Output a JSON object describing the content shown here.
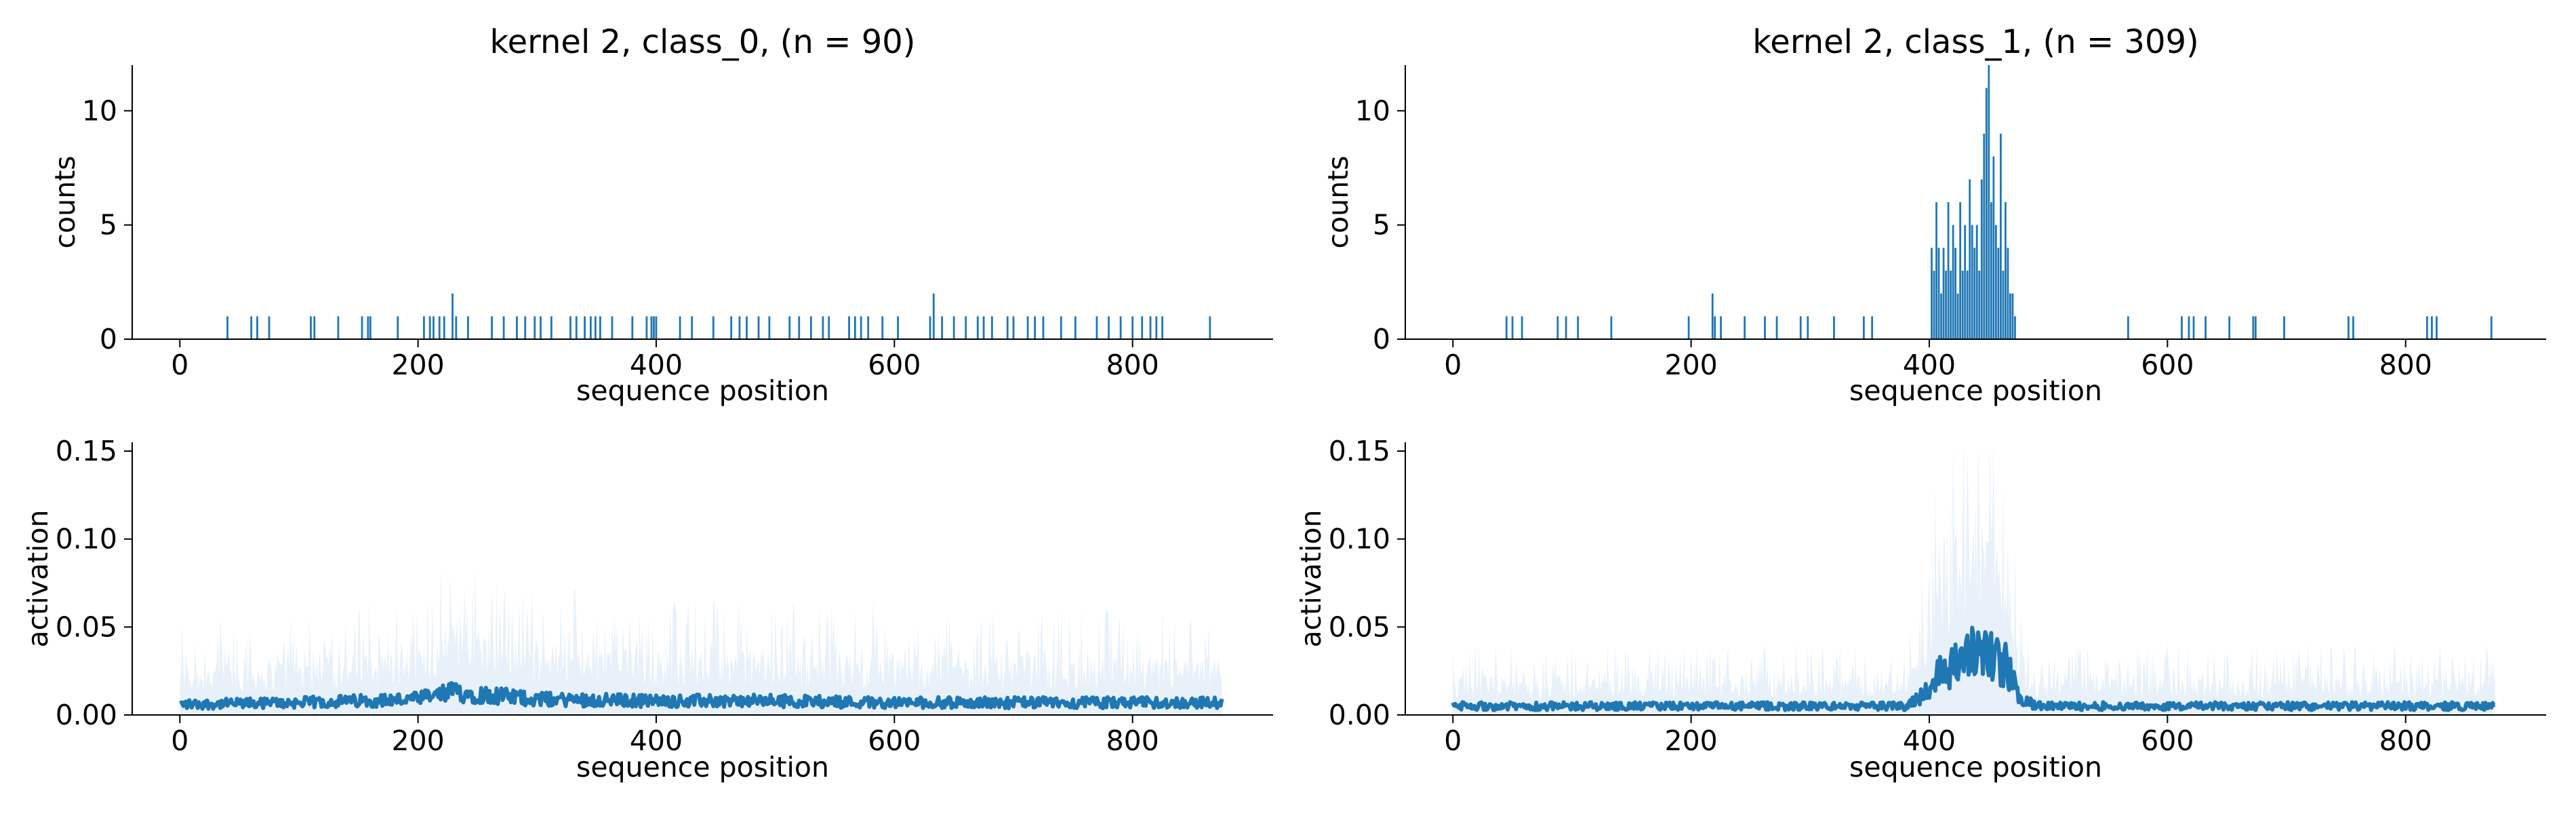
{
  "colors": {
    "series": "#1f77b4",
    "band": "#e8f1f9",
    "axis": "#000000"
  },
  "chart_data": [
    {
      "id": "top-left",
      "type": "bar",
      "title": "kernel 2, class_0, (n = 90)",
      "xlabel": "sequence position",
      "ylabel": "counts",
      "xlim": [
        -40,
        918
      ],
      "ylim": [
        0,
        12
      ],
      "xticks": [
        0,
        200,
        400,
        600,
        800
      ],
      "yticks": [
        0,
        5,
        10
      ],
      "x": [
        40,
        60,
        65,
        75,
        110,
        113,
        133,
        153,
        158,
        160,
        183,
        205,
        210,
        213,
        218,
        222,
        229,
        232,
        242,
        262,
        272,
        283,
        290,
        298,
        303,
        312,
        328,
        333,
        340,
        345,
        349,
        353,
        363,
        380,
        392,
        396,
        398,
        400,
        420,
        430,
        448,
        463,
        470,
        476,
        486,
        495,
        512,
        520,
        530,
        540,
        545,
        562,
        567,
        572,
        578,
        590,
        603,
        630,
        633,
        640,
        650,
        660,
        670,
        675,
        682,
        695,
        700,
        712,
        718,
        725,
        740,
        752,
        770,
        780,
        790,
        800,
        808,
        815,
        820,
        825,
        865
      ],
      "values": [
        1,
        1,
        1,
        1,
        1,
        1,
        1,
        1,
        1,
        1,
        1,
        1,
        1,
        1,
        1,
        1,
        2,
        1,
        1,
        1,
        1,
        1,
        1,
        1,
        1,
        1,
        1,
        1,
        1,
        1,
        1,
        1,
        1,
        1,
        1,
        1,
        1,
        1,
        1,
        1,
        1,
        1,
        1,
        1,
        1,
        1,
        1,
        1,
        1,
        1,
        1,
        1,
        1,
        1,
        1,
        1,
        1,
        1,
        2,
        1,
        1,
        1,
        1,
        1,
        1,
        1,
        1,
        1,
        1,
        1,
        1,
        1,
        1,
        1,
        1,
        1,
        1,
        1,
        1,
        1,
        1
      ]
    },
    {
      "id": "top-right",
      "type": "bar",
      "title": "kernel 2, class_1, (n = 309)",
      "xlabel": "sequence position",
      "ylabel": "counts",
      "xlim": [
        -40,
        918
      ],
      "ylim": [
        0,
        12
      ],
      "xticks": [
        0,
        200,
        400,
        600,
        800
      ],
      "yticks": [
        0,
        5,
        10
      ],
      "x": [
        45,
        50,
        58,
        88,
        95,
        105,
        133,
        198,
        218,
        220,
        225,
        245,
        262,
        272,
        292,
        298,
        320,
        345,
        352,
        402,
        404,
        406,
        408,
        410,
        412,
        414,
        416,
        418,
        420,
        422,
        424,
        426,
        428,
        430,
        432,
        434,
        436,
        438,
        440,
        442,
        444,
        446,
        448,
        450,
        452,
        454,
        456,
        458,
        460,
        462,
        464,
        466,
        468,
        470,
        472,
        567,
        612,
        618,
        622,
        632,
        652,
        672,
        674,
        698,
        752,
        756,
        818,
        822,
        826,
        872
      ],
      "values": [
        1,
        1,
        1,
        1,
        1,
        1,
        1,
        1,
        2,
        1,
        1,
        1,
        1,
        1,
        1,
        1,
        1,
        1,
        1,
        4,
        3,
        6,
        4,
        2,
        4,
        3,
        6,
        3,
        5,
        4,
        2,
        6,
        3,
        5,
        3,
        7,
        5,
        4,
        5,
        3,
        7,
        9,
        11,
        12,
        6,
        8,
        5,
        4,
        9,
        3,
        6,
        4,
        2,
        2,
        1,
        1,
        1,
        1,
        1,
        1,
        1,
        1,
        1,
        1,
        1,
        1,
        1,
        1,
        1,
        1
      ]
    },
    {
      "id": "bottom-left",
      "type": "area",
      "xlabel": "sequence position",
      "ylabel": "activation",
      "xlim": [
        -40,
        918
      ],
      "ylim": [
        0,
        0.155
      ],
      "xticks": [
        0,
        200,
        400,
        600,
        800
      ],
      "yticks": [
        0.0,
        0.05,
        0.1,
        0.15
      ],
      "ytick_labels": [
        "0.00",
        "0.05",
        "0.10",
        "0.15"
      ],
      "x_range": [
        0,
        875
      ],
      "mean_profile": [
        [
          0,
          0.006
        ],
        [
          100,
          0.007
        ],
        [
          200,
          0.009
        ],
        [
          230,
          0.013
        ],
        [
          300,
          0.009
        ],
        [
          400,
          0.008
        ],
        [
          500,
          0.008
        ],
        [
          600,
          0.007
        ],
        [
          700,
          0.007
        ],
        [
          800,
          0.007
        ],
        [
          875,
          0.007
        ]
      ],
      "band_profile": [
        [
          0,
          0.04
        ],
        [
          100,
          0.045
        ],
        [
          200,
          0.05
        ],
        [
          230,
          0.07
        ],
        [
          300,
          0.055
        ],
        [
          400,
          0.05
        ],
        [
          500,
          0.05
        ],
        [
          600,
          0.048
        ],
        [
          700,
          0.045
        ],
        [
          800,
          0.045
        ],
        [
          875,
          0.045
        ]
      ]
    },
    {
      "id": "bottom-right",
      "type": "area",
      "xlabel": "sequence position",
      "ylabel": "activation",
      "xlim": [
        -40,
        918
      ],
      "ylim": [
        0,
        0.155
      ],
      "xticks": [
        0,
        200,
        400,
        600,
        800
      ],
      "yticks": [
        0.0,
        0.05,
        0.1,
        0.15
      ],
      "ytick_labels": [
        "0.00",
        "0.05",
        "0.10",
        "0.15"
      ],
      "x_range": [
        0,
        875
      ],
      "mean_profile": [
        [
          0,
          0.005
        ],
        [
          380,
          0.005
        ],
        [
          395,
          0.012
        ],
        [
          410,
          0.025
        ],
        [
          425,
          0.03
        ],
        [
          445,
          0.038
        ],
        [
          455,
          0.032
        ],
        [
          465,
          0.028
        ],
        [
          475,
          0.01
        ],
        [
          490,
          0.005
        ],
        [
          875,
          0.005
        ]
      ],
      "band_profile": [
        [
          0,
          0.03
        ],
        [
          380,
          0.03
        ],
        [
          395,
          0.06
        ],
        [
          410,
          0.11
        ],
        [
          430,
          0.13
        ],
        [
          450,
          0.145
        ],
        [
          465,
          0.12
        ],
        [
          475,
          0.05
        ],
        [
          490,
          0.03
        ],
        [
          875,
          0.03
        ]
      ]
    }
  ]
}
